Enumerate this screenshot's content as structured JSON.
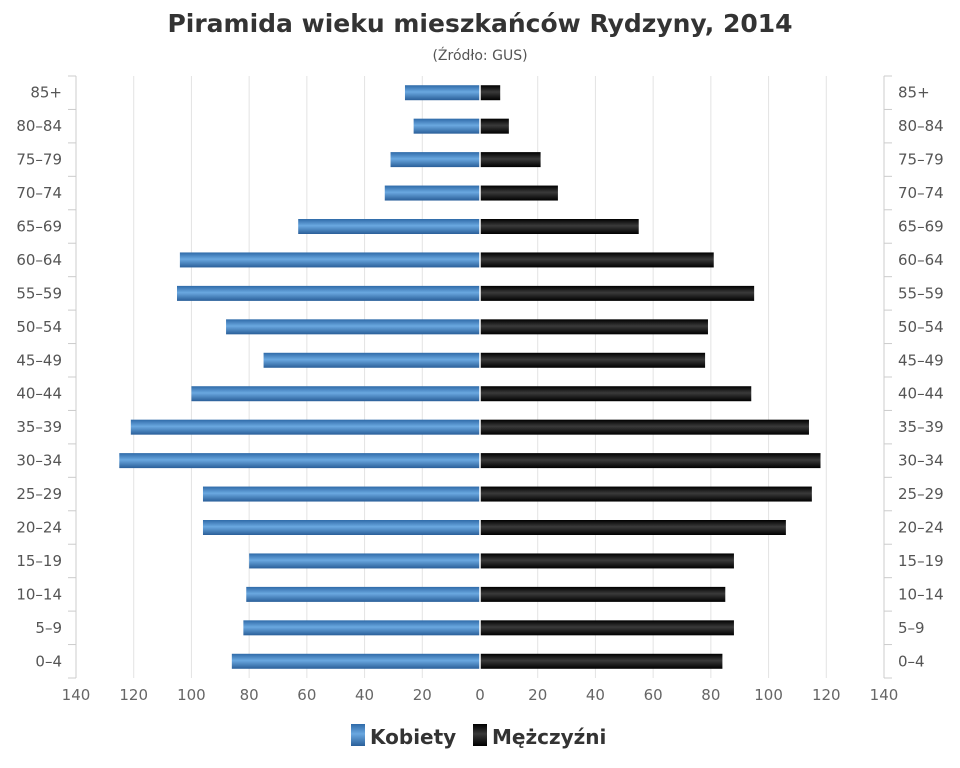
{
  "chart_data": {
    "type": "bar",
    "orientation": "horizontal-pyramid",
    "title": "Piramida wieku mieszkańców Rydzyny, 2014",
    "subtitle": "(Źródło: GUS)",
    "categories": [
      "85+",
      "80–84",
      "75–79",
      "70–74",
      "65–69",
      "60–64",
      "55–59",
      "50–54",
      "45–49",
      "40–44",
      "35–39",
      "30–34",
      "25–29",
      "20–24",
      "15–19",
      "10–14",
      "5–9",
      "0–4"
    ],
    "series": [
      {
        "name": "Kobiety",
        "side": "left",
        "color": "#3a7cc1",
        "values": [
          26,
          23,
          31,
          33,
          63,
          104,
          105,
          88,
          75,
          100,
          121,
          125,
          96,
          96,
          80,
          81,
          82,
          86
        ]
      },
      {
        "name": "Mężczyźni",
        "side": "right",
        "color": "#1a1a1a",
        "values": [
          7,
          10,
          21,
          27,
          55,
          81,
          95,
          79,
          78,
          94,
          114,
          118,
          115,
          106,
          88,
          85,
          88,
          84
        ]
      }
    ],
    "xlim": [
      -140,
      140
    ],
    "xticks": [
      "140",
      "120",
      "100",
      "80",
      "60",
      "40",
      "20",
      "0",
      "20",
      "40",
      "60",
      "80",
      "100",
      "120",
      "140"
    ],
    "grid": true,
    "legend_position": "bottom-center"
  }
}
